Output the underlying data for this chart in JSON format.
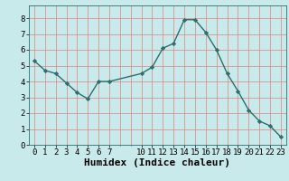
{
  "x": [
    0,
    1,
    2,
    3,
    4,
    5,
    6,
    7,
    10,
    11,
    12,
    13,
    14,
    15,
    16,
    17,
    18,
    19,
    20,
    21,
    22,
    23
  ],
  "y": [
    5.3,
    4.7,
    4.5,
    3.9,
    3.3,
    2.9,
    4.0,
    4.0,
    4.5,
    4.9,
    6.1,
    6.4,
    7.9,
    7.9,
    7.1,
    6.0,
    4.5,
    3.4,
    2.2,
    1.5,
    1.2,
    0.5
  ],
  "line_color": "#2d6e6e",
  "marker_color": "#2d6e6e",
  "bg_color": "#c8eaea",
  "grid_color": "#e08080",
  "xlabel": "Humidex (Indice chaleur)",
  "xlabel_fontsize": 8,
  "xlim": [
    -0.5,
    23.5
  ],
  "ylim": [
    0,
    8.8
  ],
  "xticks": [
    0,
    1,
    2,
    3,
    4,
    5,
    6,
    7,
    10,
    11,
    12,
    13,
    14,
    15,
    16,
    17,
    18,
    19,
    20,
    21,
    22,
    23
  ],
  "yticks": [
    0,
    1,
    2,
    3,
    4,
    5,
    6,
    7,
    8
  ],
  "tick_fontsize": 6.5
}
